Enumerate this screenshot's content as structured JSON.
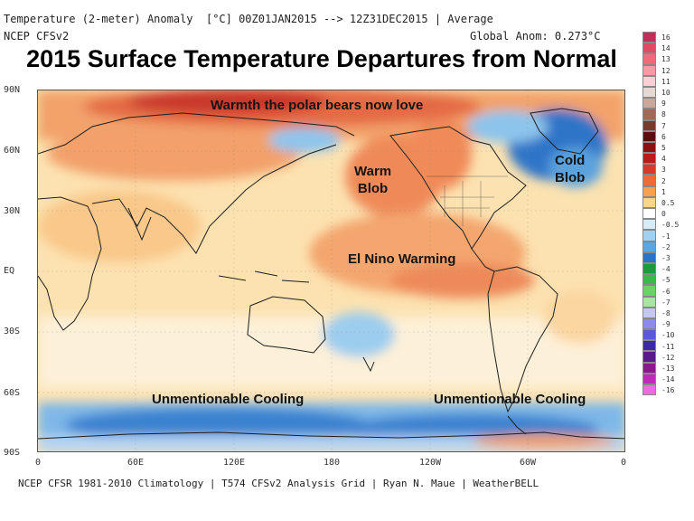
{
  "header": {
    "line1": "Temperature (2-meter) Anomaly  [°C] 00Z01JAN2015 --> 12Z31DEC2015 | Average",
    "model": "NCEP CFSv2",
    "global_anom": "Global Anom: 0.273°C"
  },
  "title": "2015 Surface Temperature Departures from Normal",
  "annotations": {
    "polar": "Warmth the polar bears now love",
    "warm_blob_1": "Warm",
    "warm_blob_2": "Blob",
    "cold_blob_1": "Cold",
    "cold_blob_2": "Blob",
    "el_nino": "El Nino Warming",
    "cooling_left": "Unmentionable Cooling",
    "cooling_right": "Unmentionable Cooling"
  },
  "lat_labels": [
    "90N",
    "60N",
    "30N",
    "EQ",
    "30S",
    "60S",
    "90S"
  ],
  "lon_labels": [
    "0",
    "60E",
    "120E",
    "180",
    "120W",
    "60W",
    "0"
  ],
  "colorbar": {
    "labels": [
      "16",
      "14",
      "13",
      "12",
      "11",
      "10",
      "9",
      "8",
      "7",
      "6",
      "5",
      "4",
      "3",
      "2",
      "1",
      "0.5",
      "0",
      "-0.5",
      "-1",
      "-2",
      "-3",
      "-4",
      "-5",
      "-6",
      "-7",
      "-8",
      "-9",
      "-10",
      "-11",
      "-12",
      "-13",
      "-14",
      "-16"
    ],
    "colors": [
      "#c22d5a",
      "#e04b63",
      "#f06a7a",
      "#f79aa6",
      "#fbd0d4",
      "#e8d8d2",
      "#c9a89a",
      "#a06a58",
      "#7a3a2a",
      "#5a0e0e",
      "#8c1010",
      "#b81c1c",
      "#d63a2a",
      "#ee6a3a",
      "#f6a050",
      "#fbd58a",
      "#ffffff",
      "#d6ecf8",
      "#a2d0f0",
      "#5aa6e0",
      "#2a74c8",
      "#1e9a3a",
      "#3ab84a",
      "#6ed06a",
      "#a6e6a0",
      "#c4c8f0",
      "#8c8ce8",
      "#5a5ad8",
      "#3a2aa8",
      "#5a1a8a",
      "#8a1a8a",
      "#c02ab8",
      "#ee6ae0"
    ]
  },
  "footer": "NCEP CFSR 1981-2010 Climatology | T574 CFSv2 Analysis Grid | Ryan N. Maue | WeatherBELL"
}
